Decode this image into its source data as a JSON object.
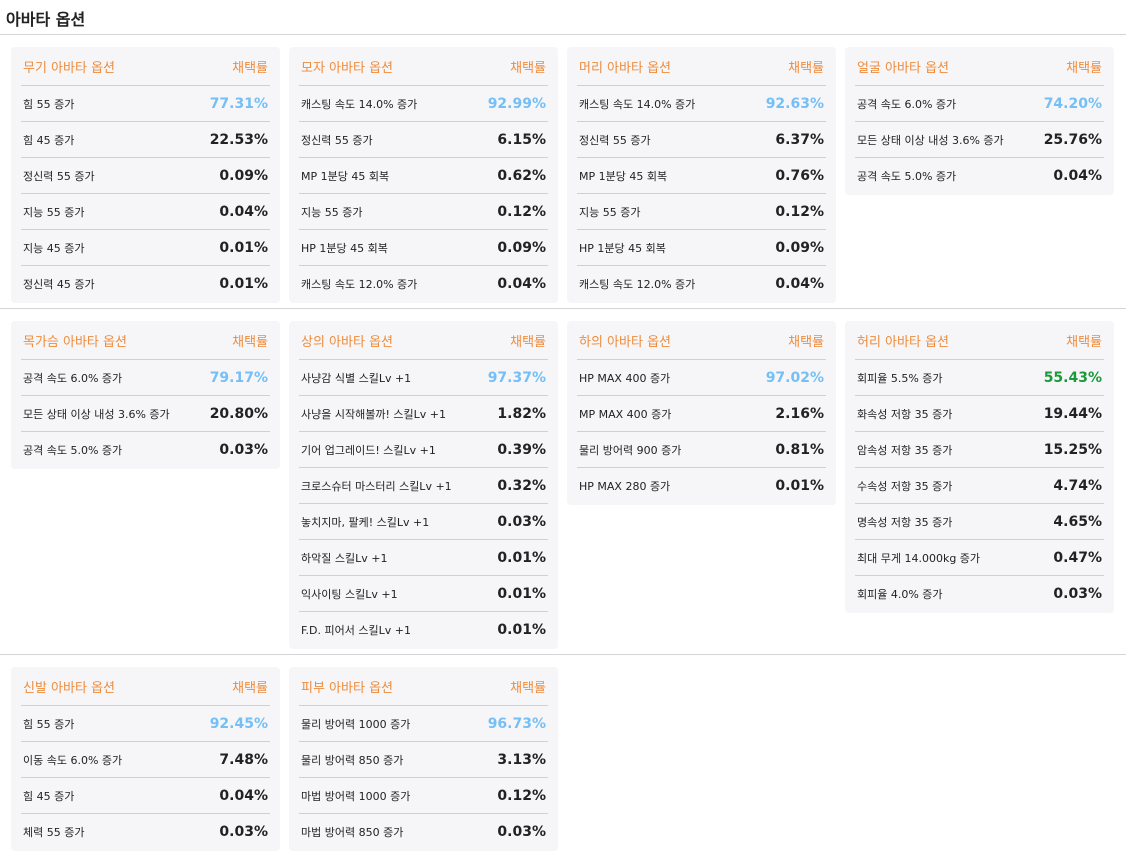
{
  "title": "아바타 옵션",
  "rate_label": "채택률",
  "colors": {
    "header": "#ef8c3c",
    "top": "#74bff5",
    "green": "#1a9a3a"
  },
  "groups": [
    [
      {
        "name": "무기 아바타 옵션",
        "items": [
          [
            "힘 55 증가",
            "77.31%"
          ],
          [
            "힘 45 증가",
            "22.53%"
          ],
          [
            "정신력 55 증가",
            "0.09%"
          ],
          [
            "지능 55 증가",
            "0.04%"
          ],
          [
            "지능 45 증가",
            "0.01%"
          ],
          [
            "정신력 45 증가",
            "0.01%"
          ]
        ]
      },
      {
        "name": "모자 아바타 옵션",
        "items": [
          [
            "캐스팅 속도 14.0% 증가",
            "92.99%"
          ],
          [
            "정신력 55 증가",
            "6.15%"
          ],
          [
            "MP 1분당 45 회복",
            "0.62%"
          ],
          [
            "지능 55 증가",
            "0.12%"
          ],
          [
            "HP 1분당 45 회복",
            "0.09%"
          ],
          [
            "캐스팅 속도 12.0% 증가",
            "0.04%"
          ]
        ]
      },
      {
        "name": "머리 아바타 옵션",
        "items": [
          [
            "캐스팅 속도 14.0% 증가",
            "92.63%"
          ],
          [
            "정신력 55 증가",
            "6.37%"
          ],
          [
            "MP 1분당 45 회복",
            "0.76%"
          ],
          [
            "지능 55 증가",
            "0.12%"
          ],
          [
            "HP 1분당 45 회복",
            "0.09%"
          ],
          [
            "캐스팅 속도 12.0% 증가",
            "0.04%"
          ]
        ]
      },
      {
        "name": "얼굴 아바타 옵션",
        "items": [
          [
            "공격 속도 6.0% 증가",
            "74.20%"
          ],
          [
            "모든 상태 이상 내성 3.6% 증가",
            "25.76%"
          ],
          [
            "공격 속도 5.0% 증가",
            "0.04%"
          ]
        ]
      }
    ],
    [
      {
        "name": "목가슴 아바타 옵션",
        "items": [
          [
            "공격 속도 6.0% 증가",
            "79.17%"
          ],
          [
            "모든 상태 이상 내성 3.6% 증가",
            "20.80%"
          ],
          [
            "공격 속도 5.0% 증가",
            "0.03%"
          ]
        ]
      },
      {
        "name": "상의 아바타 옵션",
        "items": [
          [
            "사냥감 식별 스킬Lv +1",
            "97.37%"
          ],
          [
            "사냥을 시작해볼까! 스킬Lv +1",
            "1.82%"
          ],
          [
            "기어 업그레이드! 스킬Lv +1",
            "0.39%"
          ],
          [
            "크로스슈터 마스터리 스킬Lv +1",
            "0.32%"
          ],
          [
            "놓치지마, 팔케! 스킬Lv +1",
            "0.03%"
          ],
          [
            "하악질 스킬Lv +1",
            "0.01%"
          ],
          [
            "익사이팅 스킬Lv +1",
            "0.01%"
          ],
          [
            "F.D. 피어서 스킬Lv +1",
            "0.01%"
          ]
        ]
      },
      {
        "name": "하의 아바타 옵션",
        "items": [
          [
            "HP MAX 400 증가",
            "97.02%"
          ],
          [
            "MP MAX 400 증가",
            "2.16%"
          ],
          [
            "물리 방어력 900 증가",
            "0.81%"
          ],
          [
            "HP MAX 280 증가",
            "0.01%"
          ]
        ]
      },
      {
        "name": "허리 아바타 옵션",
        "top_color": "green",
        "items": [
          [
            "회피율 5.5% 증가",
            "55.43%"
          ],
          [
            "화속성 저항 35 증가",
            "19.44%"
          ],
          [
            "암속성 저항 35 증가",
            "15.25%"
          ],
          [
            "수속성 저항 35 증가",
            "4.74%"
          ],
          [
            "명속성 저항 35 증가",
            "4.65%"
          ],
          [
            "최대 무게 14.000kg 증가",
            "0.47%"
          ],
          [
            "회피율 4.0% 증가",
            "0.03%"
          ]
        ]
      }
    ],
    [
      {
        "name": "신발 아바타 옵션",
        "items": [
          [
            "힘 55 증가",
            "92.45%"
          ],
          [
            "이동 속도 6.0% 증가",
            "7.48%"
          ],
          [
            "힘 45 증가",
            "0.04%"
          ],
          [
            "체력 55 증가",
            "0.03%"
          ]
        ]
      },
      {
        "name": "피부 아바타 옵션",
        "items": [
          [
            "물리 방어력 1000 증가",
            "96.73%"
          ],
          [
            "물리 방어력 850 증가",
            "3.13%"
          ],
          [
            "마법 방어력 1000 증가",
            "0.12%"
          ],
          [
            "마법 방어력 850 증가",
            "0.03%"
          ]
        ]
      }
    ]
  ]
}
